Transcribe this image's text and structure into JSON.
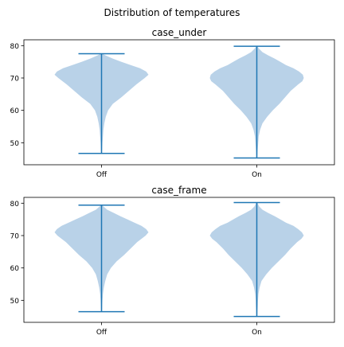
{
  "figure": {
    "suptitle": "Distribution of temperatures"
  },
  "chart_data": [
    {
      "type": "violin",
      "title": "case_under",
      "xlabel": "",
      "ylabel": "",
      "categories": [
        "Off",
        "On"
      ],
      "ylim": [
        43.2,
        81.8
      ],
      "yticks": [
        50,
        60,
        70,
        80
      ],
      "color": "#1f77b4",
      "fill": "#b9d2e8",
      "series": [
        {
          "category": "Off",
          "min": 46.7,
          "max": 77.5,
          "density": [
            [
              46.7,
              0.01
            ],
            [
              48,
              0.015
            ],
            [
              50,
              0.02
            ],
            [
              52,
              0.03
            ],
            [
              54,
              0.04
            ],
            [
              56,
              0.06
            ],
            [
              58,
              0.09
            ],
            [
              60,
              0.14
            ],
            [
              62,
              0.24
            ],
            [
              64,
              0.42
            ],
            [
              66,
              0.58
            ],
            [
              68,
              0.74
            ],
            [
              70,
              0.92
            ],
            [
              71,
              1.0
            ],
            [
              72,
              0.95
            ],
            [
              73,
              0.82
            ],
            [
              74,
              0.62
            ],
            [
              75,
              0.42
            ],
            [
              76,
              0.24
            ],
            [
              77,
              0.08
            ],
            [
              77.5,
              0.02
            ]
          ]
        },
        {
          "category": "On",
          "min": 45.3,
          "max": 79.8,
          "density": [
            [
              45.3,
              0.01
            ],
            [
              48,
              0.02
            ],
            [
              50,
              0.03
            ],
            [
              52,
              0.04
            ],
            [
              54,
              0.07
            ],
            [
              56,
              0.12
            ],
            [
              58,
              0.22
            ],
            [
              60,
              0.34
            ],
            [
              62,
              0.48
            ],
            [
              64,
              0.6
            ],
            [
              66,
              0.72
            ],
            [
              68,
              0.88
            ],
            [
              69,
              0.97
            ],
            [
              70,
              1.0
            ],
            [
              71,
              0.98
            ],
            [
              72,
              0.9
            ],
            [
              73,
              0.78
            ],
            [
              74,
              0.62
            ],
            [
              75,
              0.5
            ],
            [
              76,
              0.38
            ],
            [
              77,
              0.24
            ],
            [
              78,
              0.12
            ],
            [
              79,
              0.05
            ],
            [
              79.8,
              0.01
            ]
          ]
        }
      ]
    },
    {
      "type": "violin",
      "title": "case_frame",
      "xlabel": "",
      "ylabel": "",
      "categories": [
        "Off",
        "On"
      ],
      "ylim": [
        43.2,
        81.8
      ],
      "yticks": [
        50,
        60,
        70,
        80
      ],
      "color": "#1f77b4",
      "fill": "#b9d2e8",
      "series": [
        {
          "category": "Off",
          "min": 46.5,
          "max": 79.4,
          "density": [
            [
              46.5,
              0.01
            ],
            [
              48,
              0.015
            ],
            [
              50,
              0.02
            ],
            [
              52,
              0.03
            ],
            [
              54,
              0.05
            ],
            [
              56,
              0.08
            ],
            [
              58,
              0.12
            ],
            [
              60,
              0.2
            ],
            [
              62,
              0.32
            ],
            [
              64,
              0.48
            ],
            [
              66,
              0.62
            ],
            [
              68,
              0.76
            ],
            [
              70,
              0.94
            ],
            [
              71,
              1.0
            ],
            [
              72,
              0.95
            ],
            [
              73,
              0.85
            ],
            [
              74,
              0.7
            ],
            [
              75,
              0.55
            ],
            [
              76,
              0.4
            ],
            [
              77,
              0.26
            ],
            [
              78,
              0.12
            ],
            [
              79,
              0.04
            ],
            [
              79.4,
              0.01
            ]
          ]
        },
        {
          "category": "On",
          "min": 45.0,
          "max": 80.2,
          "density": [
            [
              45,
              0.01
            ],
            [
              48,
              0.02
            ],
            [
              50,
              0.025
            ],
            [
              52,
              0.035
            ],
            [
              54,
              0.06
            ],
            [
              56,
              0.1
            ],
            [
              58,
              0.2
            ],
            [
              60,
              0.32
            ],
            [
              62,
              0.46
            ],
            [
              64,
              0.6
            ],
            [
              66,
              0.72
            ],
            [
              68,
              0.86
            ],
            [
              69,
              0.95
            ],
            [
              70,
              1.0
            ],
            [
              71,
              0.96
            ],
            [
              72,
              0.88
            ],
            [
              73,
              0.78
            ],
            [
              74,
              0.62
            ],
            [
              75,
              0.5
            ],
            [
              76,
              0.38
            ],
            [
              77,
              0.24
            ],
            [
              78,
              0.12
            ],
            [
              79,
              0.05
            ],
            [
              80.2,
              0.01
            ]
          ]
        }
      ]
    }
  ]
}
